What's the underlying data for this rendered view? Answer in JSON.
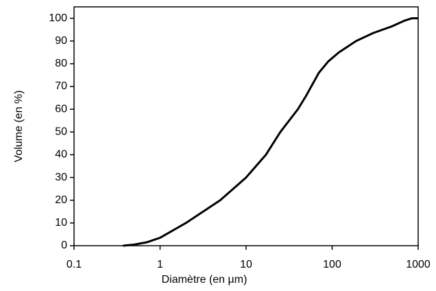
{
  "chart_data": {
    "type": "line",
    "x_label": "Diamètre (en µm)",
    "y_label": "Volume (en %)",
    "xscale": "log",
    "xlim": [
      0.1,
      1000
    ],
    "xticks": [
      0.1,
      1,
      10,
      100,
      1000
    ],
    "ylim": [
      0,
      105
    ],
    "yticks": [
      0,
      10,
      20,
      30,
      40,
      50,
      60,
      70,
      80,
      90,
      100
    ],
    "series": [
      {
        "color": "#000000",
        "x": [
          0.37,
          0.5,
          0.7,
          1,
          2,
          5,
          10,
          17,
          25,
          40,
          50,
          70,
          90,
          120,
          190,
          300,
          500,
          700,
          850,
          1000
        ],
        "values": [
          0,
          0.5,
          1.5,
          3.5,
          10,
          20,
          30,
          40,
          50,
          60,
          66,
          76,
          81,
          85,
          90,
          93.5,
          96.5,
          99,
          100,
          100
        ]
      }
    ]
  }
}
